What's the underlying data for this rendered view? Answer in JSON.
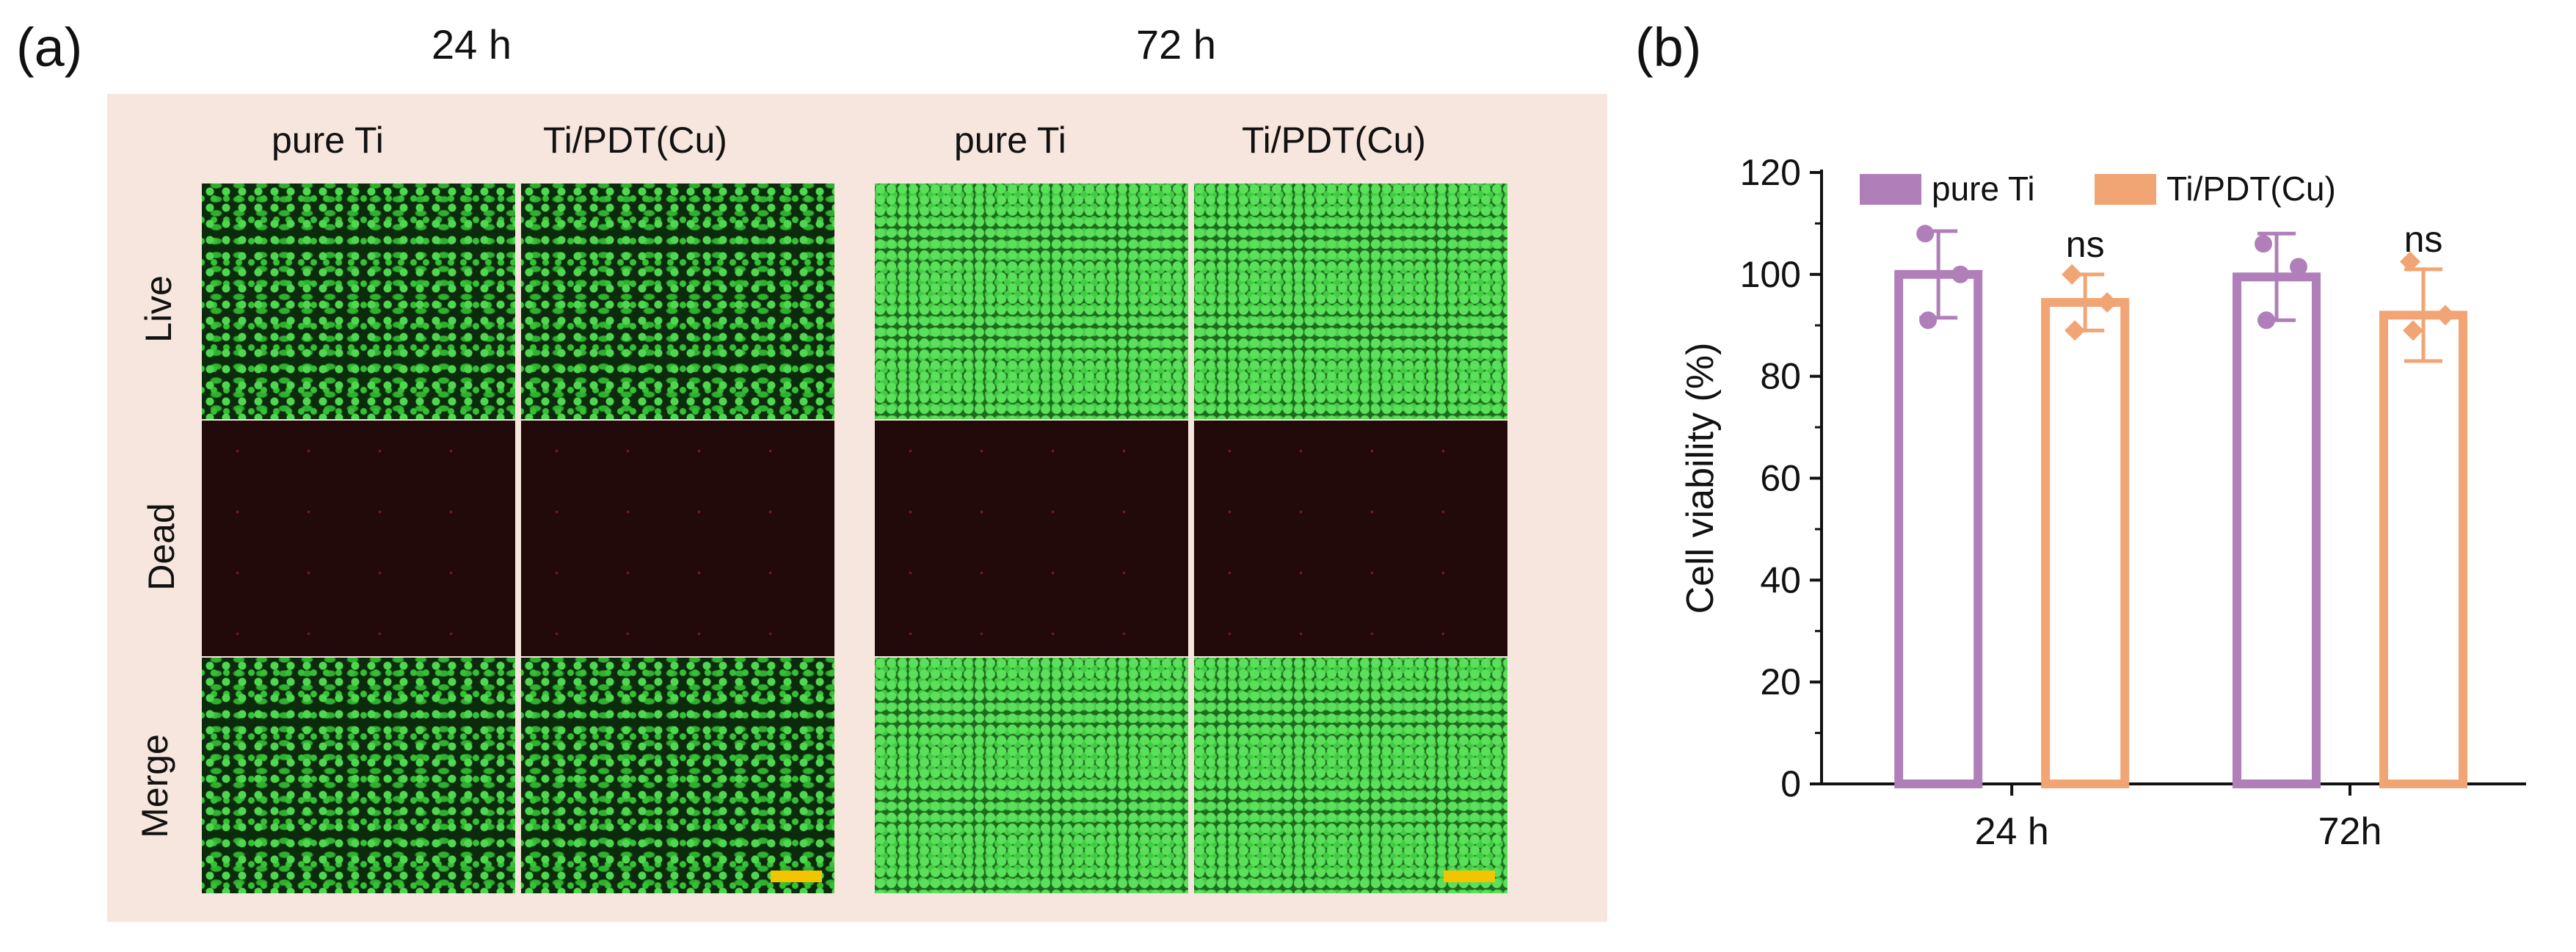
{
  "panel_a": {
    "letter": "(a)",
    "time_groups": [
      "24 h",
      "72 h"
    ],
    "column_labels": [
      "pure Ti",
      "Ti/PDT(Cu)",
      "pure Ti",
      "Ti/PDT(Cu)"
    ],
    "row_labels": [
      "Live",
      "Dead",
      "Merge"
    ],
    "colors": {
      "background": "#f7e6dd",
      "live_stain": "#3fcf3f",
      "dead_stain": "#7a1a1a",
      "scale_bar": "#f2c500"
    }
  },
  "panel_b": {
    "letter": "(b)",
    "significance_label": "ns"
  },
  "chart_data": {
    "type": "bar",
    "categories": [
      "24 h",
      "72h"
    ],
    "series": [
      {
        "name": "pure Ti",
        "color": "#b07fba",
        "values": [
          100,
          99.5
        ],
        "error": [
          8.5,
          8.5
        ],
        "points": [
          [
            108,
            100,
            91
          ],
          [
            106,
            101.5,
            91
          ]
        ]
      },
      {
        "name": "Ti/PDT(Cu)",
        "color": "#f2a574",
        "values": [
          94.5,
          92
        ],
        "error": [
          5.5,
          9
        ],
        "points": [
          [
            100,
            94.5,
            89
          ],
          [
            102.5,
            92,
            89
          ]
        ]
      }
    ],
    "annotations": [
      "ns",
      "ns"
    ],
    "xlabel": "",
    "ylabel": "Cell viability (%)",
    "ylim": [
      0,
      120
    ],
    "yticks": [
      0,
      20,
      40,
      60,
      80,
      100,
      120
    ],
    "legend": "top-left",
    "grid": false
  }
}
